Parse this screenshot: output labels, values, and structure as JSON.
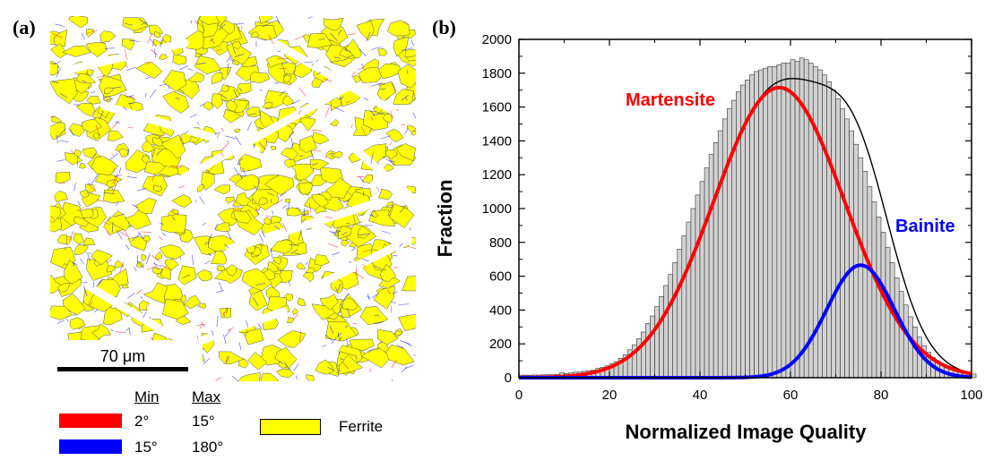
{
  "panel_a": {
    "label": "(a)",
    "scale_bar": "70 μm",
    "legend": {
      "min_header": "Min",
      "max_header": "Max",
      "rows": [
        {
          "color": "#ff0000",
          "min": "2°",
          "max": "15°"
        },
        {
          "color": "#0000ff",
          "min": "15°",
          "max": "180°"
        }
      ],
      "ferrite_label": "Ferrite",
      "ferrite_color": "#ffff00"
    },
    "colors": {
      "ferrite": "#ffff00",
      "bainite_white": "#ffffff",
      "low_angle": "#ff0000",
      "high_angle": "#0000ff"
    }
  },
  "panel_b": {
    "label": "(b)",
    "annotations": {
      "martensite": "Martensite",
      "bainite": "Bainite"
    }
  },
  "chart_data": {
    "type": "bar",
    "title": "",
    "xlabel": "Normalized Image Quality",
    "ylabel": "Fraction",
    "xlim": [
      0,
      100
    ],
    "ylim": [
      0,
      2000
    ],
    "x_ticks": [
      "0",
      "20",
      "40",
      "60",
      "80",
      "100"
    ],
    "y_ticks": [
      "0",
      "200",
      "400",
      "600",
      "800",
      "1000",
      "1200",
      "1400",
      "1600",
      "1800",
      "2000"
    ],
    "histogram": {
      "bin_width": 1,
      "x": [
        0,
        1,
        2,
        3,
        4,
        5,
        6,
        7,
        8,
        9,
        10,
        11,
        12,
        13,
        14,
        15,
        16,
        17,
        18,
        19,
        20,
        21,
        22,
        23,
        24,
        25,
        26,
        27,
        28,
        29,
        30,
        31,
        32,
        33,
        34,
        35,
        36,
        37,
        38,
        39,
        40,
        41,
        42,
        43,
        44,
        45,
        46,
        47,
        48,
        49,
        50,
        51,
        52,
        53,
        54,
        55,
        56,
        57,
        58,
        59,
        60,
        61,
        62,
        63,
        64,
        65,
        66,
        67,
        68,
        69,
        70,
        71,
        72,
        73,
        74,
        75,
        76,
        77,
        78,
        79,
        80,
        81,
        82,
        83,
        84,
        85,
        86,
        87,
        88,
        89,
        90,
        91,
        92,
        93,
        94,
        95,
        96,
        97,
        98,
        99,
        100
      ],
      "values": [
        15,
        15,
        15,
        16,
        16,
        17,
        17,
        18,
        20,
        28,
        25,
        28,
        33,
        33,
        38,
        42,
        45,
        55,
        62,
        70,
        82,
        95,
        115,
        135,
        165,
        195,
        230,
        270,
        320,
        365,
        420,
        480,
        545,
        610,
        680,
        760,
        840,
        920,
        1000,
        1080,
        1160,
        1240,
        1320,
        1390,
        1460,
        1530,
        1590,
        1640,
        1690,
        1730,
        1760,
        1790,
        1810,
        1820,
        1830,
        1840,
        1840,
        1850,
        1860,
        1860,
        1880,
        1870,
        1890,
        1880,
        1860,
        1840,
        1820,
        1790,
        1750,
        1700,
        1650,
        1590,
        1530,
        1460,
        1380,
        1300,
        1220,
        1130,
        1040,
        950,
        860,
        770,
        680,
        590,
        510,
        430,
        360,
        300,
        240,
        190,
        150,
        120,
        95,
        75,
        60,
        48,
        40,
        34,
        30,
        27,
        22
      ]
    },
    "series": [
      {
        "name": "Martensite",
        "color": "#ff0000",
        "peak_x": 57.5,
        "peak_y": 1715,
        "sigma": 14.5
      },
      {
        "name": "Bainite",
        "color": "#0000ff",
        "peak_x": 75.5,
        "peak_y": 665,
        "sigma": 7.5
      }
    ],
    "envelope": {
      "color": "#000000"
    },
    "grid": false,
    "legend": "none"
  }
}
